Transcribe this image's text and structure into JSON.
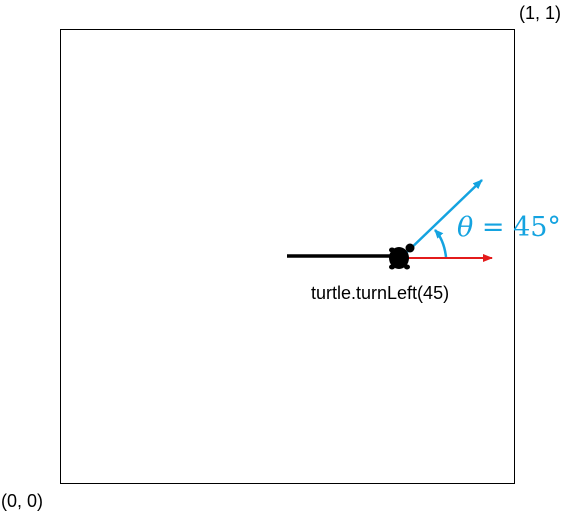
{
  "corners": {
    "top_right": "(1, 1)",
    "bottom_left": "(0, 0)"
  },
  "caption": "turtle.turnLeft(45)",
  "angle_label": {
    "symbol": "θ",
    "equals": " = ",
    "value": "45°"
  },
  "colors": {
    "trail": "#000000",
    "heading_before": "#e31b1b",
    "heading_after": "#14a3e0",
    "frame": "#000000"
  },
  "icons": {
    "turtle": "turtle-icon"
  }
}
